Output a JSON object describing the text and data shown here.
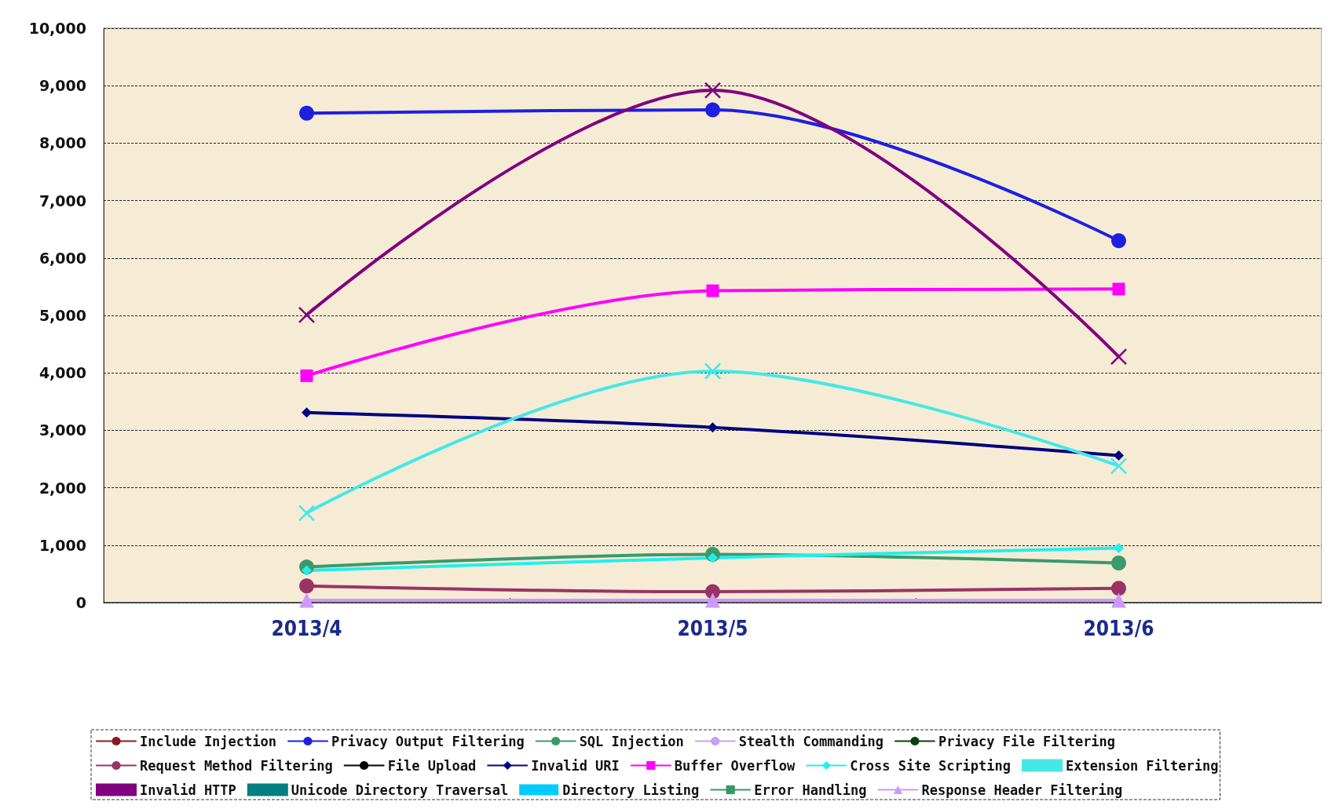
{
  "chart_data": {
    "type": "line",
    "categories": [
      "2013/4",
      "2013/5",
      "2013/6"
    ],
    "ylim": [
      0,
      10000
    ],
    "yticks": [
      0,
      {
        "value": 1000,
        "label": "1,000"
      },
      {
        "value": 2000,
        "label": "2,000"
      },
      {
        "value": 3000,
        "label": "3,000"
      },
      {
        "value": 4000,
        "label": "4,000"
      },
      {
        "value": 5000,
        "label": "5,000"
      },
      {
        "value": 6000,
        "label": "6,000"
      },
      {
        "value": 7000,
        "label": "7,000"
      },
      {
        "value": 8000,
        "label": "8,000"
      },
      {
        "value": 9000,
        "label": "9,000"
      },
      {
        "value": 10000,
        "label": "10,000"
      }
    ],
    "grid": "y",
    "legend": "bottom",
    "line_style": "solid",
    "series": [
      {
        "name": "Include Injection",
        "color": "#8b1a1a",
        "marker": "circle",
        "values": [
          null,
          null,
          null
        ]
      },
      {
        "name": "Privacy Output Filtering",
        "color": "#1f1fe0",
        "marker": "circle",
        "values": [
          8520,
          8580,
          6300
        ]
      },
      {
        "name": "SQL Injection",
        "color": "#3a9a6a",
        "marker": "circle",
        "values": [
          620,
          840,
          690
        ]
      },
      {
        "name": "Stealth Commanding",
        "color": "#c8a0f0",
        "marker": "circle",
        "values": [
          null,
          null,
          null
        ]
      },
      {
        "name": "Privacy File Filtering",
        "color": "#0a4010",
        "marker": "circle",
        "values": [
          null,
          null,
          null
        ]
      },
      {
        "name": "Request Method Filtering",
        "color": "#993366",
        "marker": "circle",
        "values": [
          290,
          190,
          250
        ]
      },
      {
        "name": "File Upload",
        "color": "#000000",
        "marker": "circle",
        "values": [
          null,
          null,
          null
        ]
      },
      {
        "name": "Invalid URI",
        "color": "#000080",
        "marker": "diamond",
        "values": [
          3310,
          3050,
          2560
        ]
      },
      {
        "name": "Buffer Overflow",
        "color": "#ff00ff",
        "marker": "square",
        "values": [
          3950,
          5430,
          5460
        ]
      },
      {
        "name": "Cross Site Scripting",
        "color": "#22eeee",
        "marker": "diamond",
        "values": [
          560,
          780,
          950
        ]
      },
      {
        "name": "Extension Filtering",
        "color": "#44e8e8",
        "marker": "cross",
        "values": [
          1560,
          4030,
          2380
        ]
      },
      {
        "name": "Invalid HTTP",
        "color": "#800080",
        "marker": "cross",
        "values": [
          5010,
          8920,
          4280
        ]
      },
      {
        "name": "Unicode Directory Traversal",
        "color": "#008080",
        "marker": "cross",
        "values": [
          null,
          null,
          null
        ]
      },
      {
        "name": "Directory Listing",
        "color": "#00ccff",
        "marker": "none",
        "values": [
          null,
          null,
          null
        ]
      },
      {
        "name": "Error Handling",
        "color": "#339966",
        "marker": "square",
        "values": [
          null,
          null,
          null
        ]
      },
      {
        "name": "Response Header Filtering",
        "color": "#cc99ff",
        "marker": "triangle",
        "values": [
          40,
          40,
          40
        ]
      }
    ]
  }
}
